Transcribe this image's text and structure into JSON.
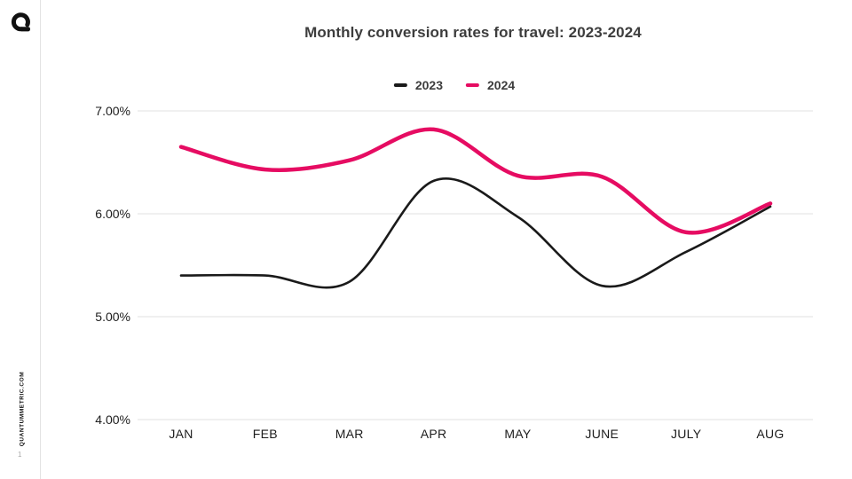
{
  "page": {
    "footer_vertical_text": "QUANTUMMETRIC.COM",
    "page_number": "1",
    "background_color": "#ffffff",
    "sidebar_divider_color": "#e3e3e3",
    "logo_icon": "quantum-metric-q-logo",
    "logo_color": "#111111"
  },
  "chart_data": {
    "type": "line",
    "title": "Monthly conversion rates for travel: 2023-2024",
    "categories": [
      "JAN",
      "FEB",
      "MAR",
      "APR",
      "MAY",
      "JUNE",
      "JULY",
      "AUG"
    ],
    "series": [
      {
        "name": "2023",
        "color": "#1a1a1a",
        "values": [
          5.4,
          5.4,
          5.34,
          6.32,
          5.97,
          5.3,
          5.63,
          6.07
        ]
      },
      {
        "name": "2024",
        "color": "#E60C62",
        "values": [
          6.65,
          6.43,
          6.52,
          6.82,
          6.37,
          6.36,
          5.82,
          6.1
        ]
      }
    ],
    "ylim": [
      4,
      7
    ],
    "yticks": [
      {
        "value": 7,
        "label": "7.00%"
      },
      {
        "value": 6,
        "label": "6.00%"
      },
      {
        "value": 5,
        "label": "5.00%"
      },
      {
        "value": 4,
        "label": "4.00%"
      }
    ],
    "unit": "%",
    "grid": "horizontal",
    "gridline_color": "#e1e1e1",
    "legend_position": "top-center",
    "curve": "smooth"
  }
}
